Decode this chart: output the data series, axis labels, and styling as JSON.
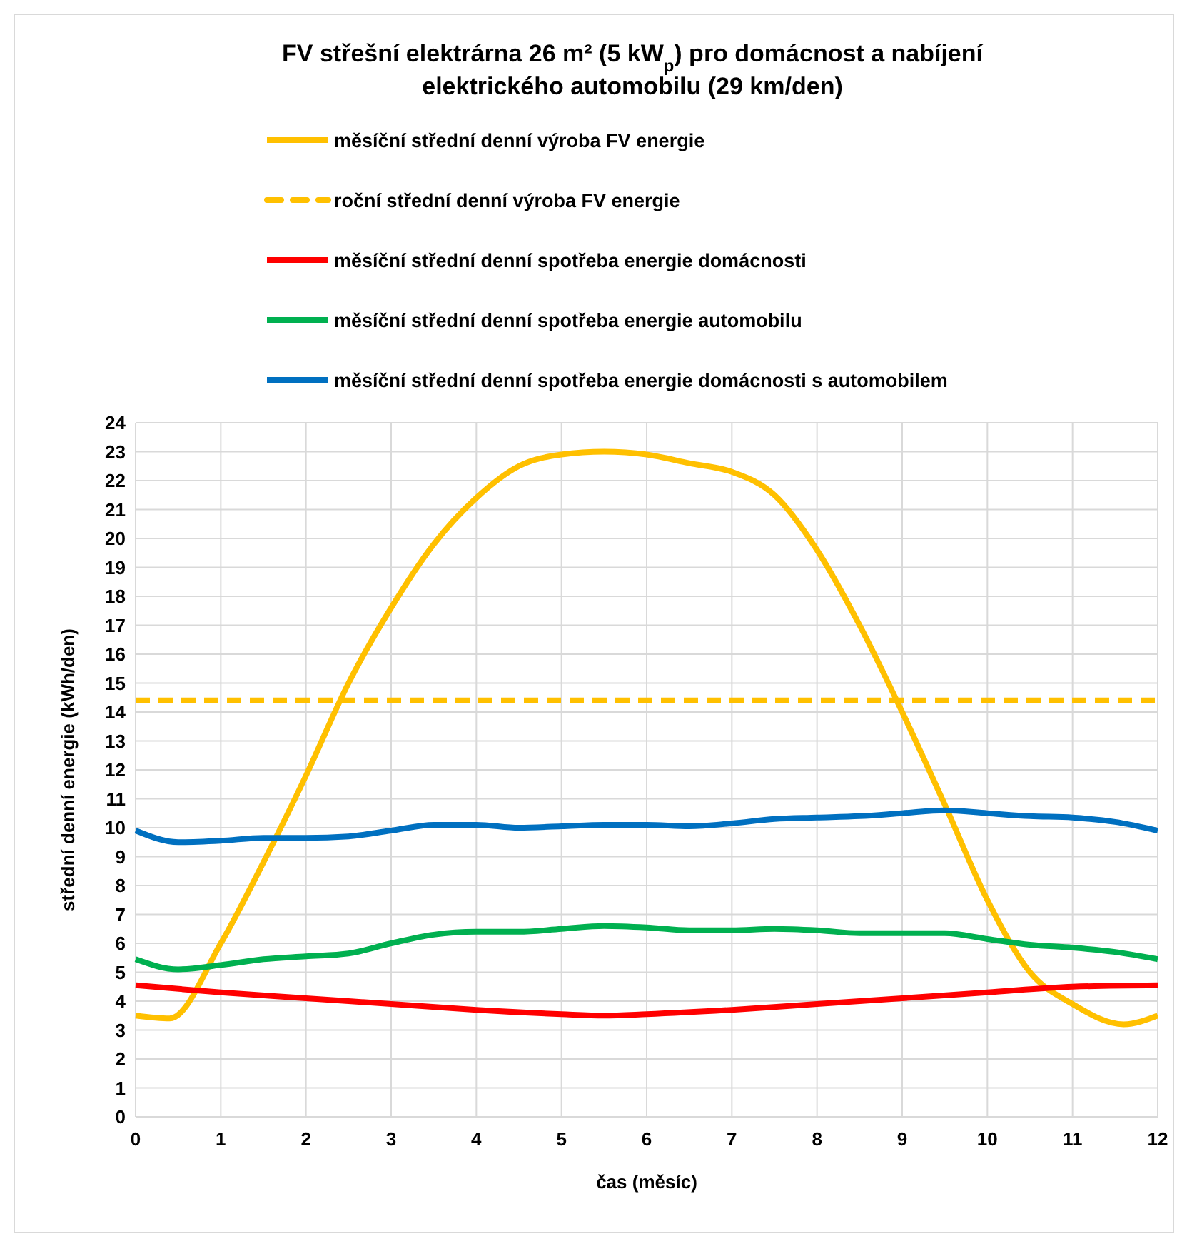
{
  "chart_data": {
    "type": "line",
    "title": "FV střešní elektrárna 26 m² (5 kW$_{p}$) pro domácnost a nabíjení elektrického automobilu (29 km/den)",
    "xlabel": "čas (měsíc)",
    "ylabel": "střední denní energie (kWh/den)",
    "xlim": [
      0,
      12
    ],
    "xticks": [
      0,
      1,
      2,
      3,
      4,
      5,
      6,
      7,
      8,
      9,
      10,
      11,
      12
    ],
    "ylim": [
      0,
      24
    ],
    "yticks": [
      0,
      1,
      2,
      3,
      4,
      5,
      6,
      7,
      8,
      9,
      10,
      11,
      12,
      13,
      14,
      15,
      16,
      17,
      18,
      19,
      20,
      21,
      22,
      23,
      24
    ],
    "grid": true,
    "legend": "top",
    "marker": "none",
    "series": [
      {
        "name": "měsíční střední denní výroba FV energie",
        "color": "#ffc000",
        "line_style": "solid",
        "x": [
          0,
          0.4,
          1,
          1.5,
          2,
          2.5,
          3,
          3.5,
          4,
          4.5,
          5,
          5.5,
          6,
          6.5,
          7,
          7.5,
          8,
          8.5,
          9,
          9.5,
          10,
          10.5,
          11,
          11.6,
          12
        ],
        "values": [
          3.5,
          3.4,
          6,
          8.8,
          11.8,
          15,
          17.6,
          19.8,
          21.4,
          22.5,
          22.9,
          23,
          22.9,
          22.6,
          22.3,
          21.5,
          19.6,
          17,
          14,
          10.8,
          7.5,
          5,
          3.9,
          3.2,
          3.5
        ]
      },
      {
        "name": "roční střední denní výroba FV energie",
        "color": "#ffc000",
        "line_style": "dashed",
        "x": [
          0,
          12
        ],
        "values": [
          14.4,
          14.4
        ]
      },
      {
        "name": "měsíční střední denní spotřeba energie domácnosti",
        "color": "#ff0000",
        "line_style": "solid",
        "x": [
          0,
          1,
          2,
          3,
          4,
          5,
          5.5,
          6,
          7,
          8,
          9,
          10,
          11,
          12
        ],
        "values": [
          4.55,
          4.3,
          4.1,
          3.9,
          3.7,
          3.55,
          3.5,
          3.55,
          3.7,
          3.9,
          4.1,
          4.3,
          4.5,
          4.55
        ]
      },
      {
        "name": "měsíční střední denní spotřeba energie automobilu",
        "color": "#00b050",
        "line_style": "solid",
        "x": [
          0,
          0.5,
          1,
          1.5,
          2,
          2.5,
          3,
          3.5,
          4,
          4.5,
          5,
          5.5,
          6,
          6.5,
          7,
          7.5,
          8,
          8.5,
          9,
          9.5,
          10,
          10.5,
          11,
          11.5,
          12
        ],
        "values": [
          5.45,
          5.1,
          5.25,
          5.45,
          5.55,
          5.65,
          6,
          6.3,
          6.4,
          6.4,
          6.5,
          6.6,
          6.55,
          6.45,
          6.45,
          6.5,
          6.45,
          6.35,
          6.35,
          6.35,
          6.15,
          5.95,
          5.85,
          5.7,
          5.45
        ]
      },
      {
        "name": "měsíční střední denní spotřeba energie domácnosti s automobilem",
        "color": "#0070c0",
        "line_style": "solid",
        "x": [
          0,
          0.5,
          1,
          1.5,
          2,
          2.5,
          3,
          3.5,
          4,
          4.5,
          5,
          5.5,
          6,
          6.5,
          7,
          7.5,
          8,
          8.5,
          9,
          9.5,
          10,
          10.5,
          11,
          11.5,
          12
        ],
        "values": [
          9.9,
          9.5,
          9.55,
          9.65,
          9.65,
          9.7,
          9.9,
          10.1,
          10.1,
          10,
          10.05,
          10.1,
          10.1,
          10.05,
          10.15,
          10.3,
          10.35,
          10.4,
          10.5,
          10.6,
          10.5,
          10.4,
          10.35,
          10.2,
          9.9
        ]
      }
    ]
  }
}
